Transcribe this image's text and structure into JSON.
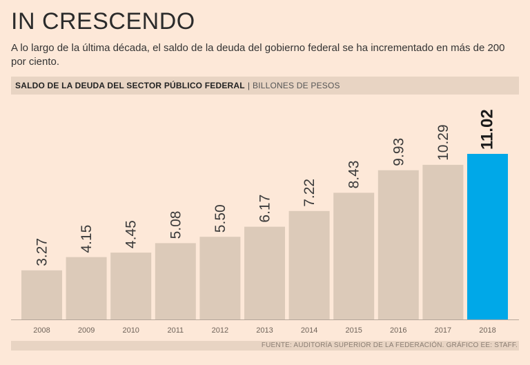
{
  "header": {
    "title": "IN CRESCENDO",
    "subtitle": "A lo largo de la última década, el saldo de la deuda del gobierno federal se ha incrementado en más de 200 por ciento.",
    "chart_heading": "SALDO DE LA DEUDA DEL SECTOR PÚBLICO FEDERAL",
    "chart_separator": "|",
    "chart_unit": "BILLONES DE PESOS"
  },
  "footer": {
    "source": "FUENTE: AUDITORÍA SUPERIOR DE LA FEDERACIÓN. GRÁFICO EE: STAFF."
  },
  "colors": {
    "bar": "#dccab9",
    "highlight_bar": "#00a8e8",
    "background": "#fde8d8",
    "strip": "#e8d4c3",
    "axis": "#b5a69a"
  },
  "chart_data": {
    "type": "bar",
    "categories": [
      "2008",
      "2009",
      "2010",
      "2011",
      "2012",
      "2013",
      "2014",
      "2015",
      "2016",
      "2017",
      "2018"
    ],
    "values": [
      3.27,
      4.15,
      4.45,
      5.08,
      5.5,
      6.17,
      7.22,
      8.43,
      9.93,
      10.29,
      11.02
    ],
    "labels": [
      "3.27",
      "4.15",
      "4.45",
      "5.08",
      "5.50",
      "6.17",
      "7.22",
      "8.43",
      "9.93",
      "10.29",
      "11.02"
    ],
    "highlight_index": 10,
    "title": "",
    "xlabel": "",
    "ylabel": "",
    "ylim": [
      0,
      11.02
    ],
    "grid": false,
    "legend": "none"
  }
}
